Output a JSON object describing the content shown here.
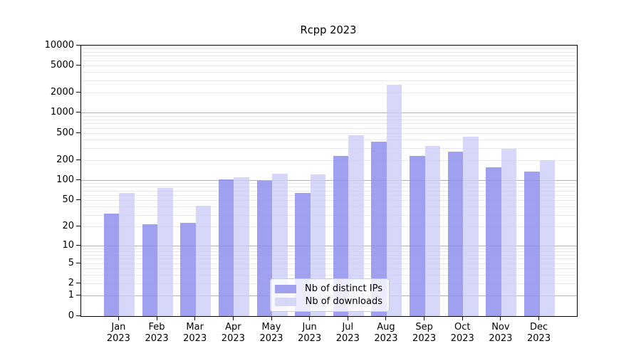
{
  "title": "Rcpp 2023",
  "chart_data": {
    "type": "bar",
    "title": "Rcpp 2023",
    "y_scale": "log1p (symlog-like: 0 at baseline, log10 spacing above)",
    "ylim": [
      0,
      10000
    ],
    "yticks": [
      0,
      1,
      2,
      5,
      10,
      20,
      50,
      100,
      200,
      500,
      1000,
      2000,
      5000,
      10000
    ],
    "grid": "major gray lines at powers of 10, light minor lines at 2-9 per decade",
    "categories": [
      "Jan 2023",
      "Feb 2023",
      "Mar 2023",
      "Apr 2023",
      "May 2023",
      "Jun 2023",
      "Jul 2023",
      "Aug 2023",
      "Sep 2023",
      "Oct 2023",
      "Nov 2023",
      "Dec 2023"
    ],
    "series": [
      {
        "name": "Nb of distinct IPs",
        "color": "#a0a0ee",
        "fill": "rgba(143,143,237,0.85)",
        "values": [
          32,
          22,
          23,
          104,
          98,
          66,
          232,
          378,
          232,
          267,
          157,
          135
        ]
      },
      {
        "name": "Nb of downloads",
        "color": "#d7d7f8",
        "fill": "rgba(205,205,247,0.8)",
        "values": [
          66,
          78,
          42,
          113,
          125,
          122,
          470,
          2660,
          330,
          452,
          296,
          200
        ]
      }
    ],
    "legend_position": "lower-center-inside",
    "xlabel": "",
    "ylabel": ""
  }
}
